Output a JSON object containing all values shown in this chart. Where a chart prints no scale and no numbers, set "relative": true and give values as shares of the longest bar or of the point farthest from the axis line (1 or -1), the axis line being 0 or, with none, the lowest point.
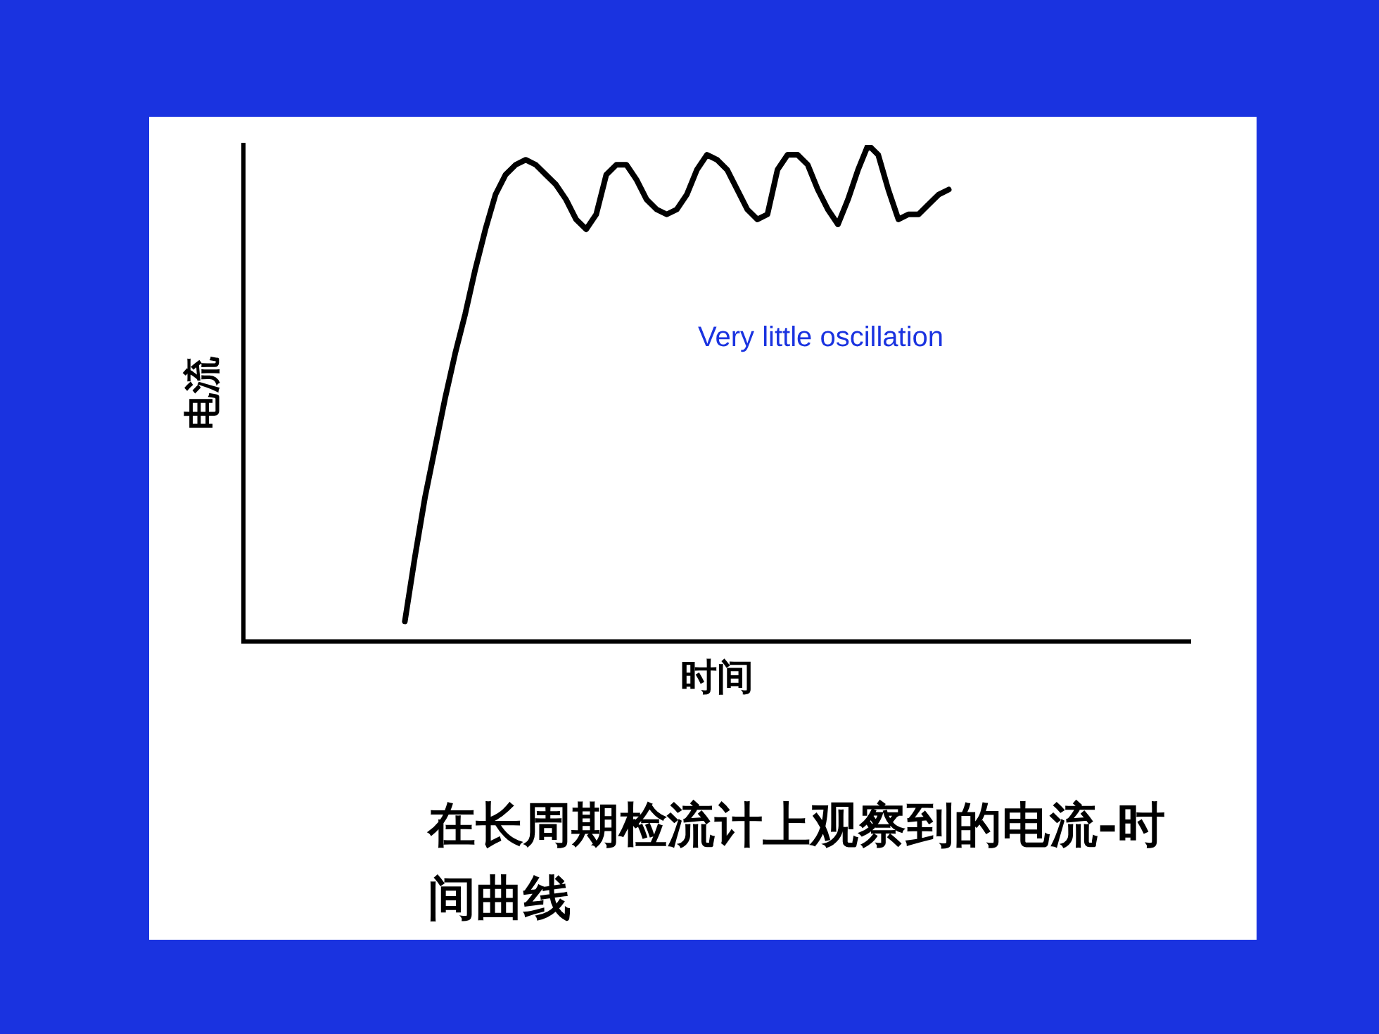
{
  "chart_data": {
    "type": "line",
    "relative": true,
    "xlabel": "时间",
    "ylabel": "电流",
    "color": "#000000",
    "categories": [
      null,
      null,
      null,
      null,
      null,
      null,
      null,
      null,
      null,
      null,
      null,
      null,
      null,
      null,
      null,
      null,
      null,
      null,
      null,
      null,
      null,
      null,
      null,
      null,
      null,
      null,
      null,
      null,
      null,
      null,
      null,
      null,
      null,
      null,
      null,
      null,
      null,
      null,
      null,
      null,
      null,
      null,
      null,
      null,
      null,
      null,
      null,
      null,
      null,
      null,
      null,
      null,
      null,
      null,
      null,
      null,
      null,
      null,
      null,
      null,
      null,
      null,
      null,
      null,
      null,
      null,
      null,
      null,
      null,
      null,
      null,
      null,
      null,
      null,
      null,
      null,
      null,
      null,
      null,
      null,
      null,
      null,
      null,
      null,
      null,
      null,
      null,
      null,
      null,
      null,
      null,
      null,
      null,
      null,
      null
    ],
    "values": [
      null,
      null,
      null,
      null,
      null,
      null,
      null,
      null,
      null,
      null,
      null,
      null,
      null,
      null,
      null,
      null,
      0.04,
      0.17,
      0.29,
      0.39,
      0.49,
      0.58,
      0.66,
      0.75,
      0.83,
      0.9,
      0.94,
      0.96,
      0.97,
      0.96,
      0.94,
      0.92,
      0.89,
      0.85,
      0.83,
      0.86,
      0.94,
      0.96,
      0.96,
      0.93,
      0.89,
      0.87,
      0.86,
      0.87,
      0.9,
      0.95,
      0.98,
      0.97,
      0.95,
      0.91,
      0.87,
      0.85,
      0.86,
      0.95,
      0.98,
      0.98,
      0.96,
      0.91,
      0.87,
      0.84,
      0.89,
      0.95,
      1,
      0.98,
      0.91,
      0.85,
      0.86,
      0.86,
      0.88,
      0.9,
      0.91,
      null,
      null,
      null,
      null,
      null,
      null,
      null,
      null,
      null,
      null,
      null,
      null,
      null,
      null,
      null,
      null,
      null,
      null,
      null,
      null,
      null,
      null,
      null,
      null
    ],
    "annotations": [
      "Very little oscillation",
      "在长周期检流计上观察到的电流-时间曲线"
    ]
  }
}
